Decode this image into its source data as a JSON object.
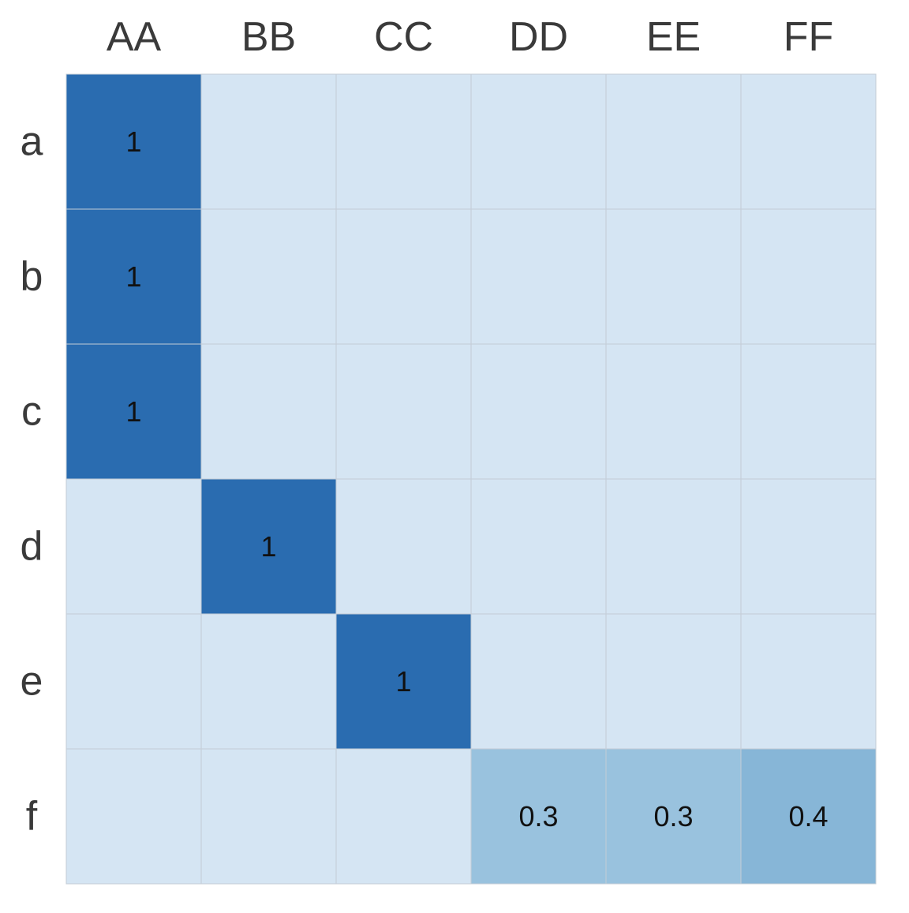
{
  "chart_data": {
    "type": "heatmap",
    "title": "",
    "xlabel": "",
    "ylabel": "",
    "x_categories": [
      "AA",
      "BB",
      "CC",
      "DD",
      "EE",
      "FF"
    ],
    "y_categories": [
      "a",
      "b",
      "c",
      "d",
      "e",
      "f"
    ],
    "values": [
      [
        1,
        0,
        0,
        0,
        0,
        0
      ],
      [
        1,
        0,
        0,
        0,
        0,
        0
      ],
      [
        1,
        0,
        0,
        0,
        0,
        0
      ],
      [
        0,
        1,
        0,
        0,
        0,
        0
      ],
      [
        0,
        0,
        1,
        0,
        0,
        0
      ],
      [
        0,
        0,
        0,
        0.3,
        0.3,
        0.4
      ]
    ],
    "cell_labels": [
      [
        "1",
        "",
        "",
        "",
        "",
        ""
      ],
      [
        "1",
        "",
        "",
        "",
        "",
        ""
      ],
      [
        "1",
        "",
        "",
        "",
        "",
        ""
      ],
      [
        "",
        "1",
        "",
        "",
        "",
        ""
      ],
      [
        "",
        "",
        "1",
        "",
        "",
        ""
      ],
      [
        "",
        "",
        "",
        "0.3",
        "0.3",
        "0.4"
      ]
    ],
    "x_axis_position": "top",
    "grid": true,
    "legend": "none",
    "colors": {
      "low": "#d5e5f3",
      "mid": "#8fbcda",
      "high": "#2a6cb0",
      "grid_line": "#c3ccd6",
      "tick_text": "#3a3a3a",
      "annotation_text": "#111111"
    }
  }
}
